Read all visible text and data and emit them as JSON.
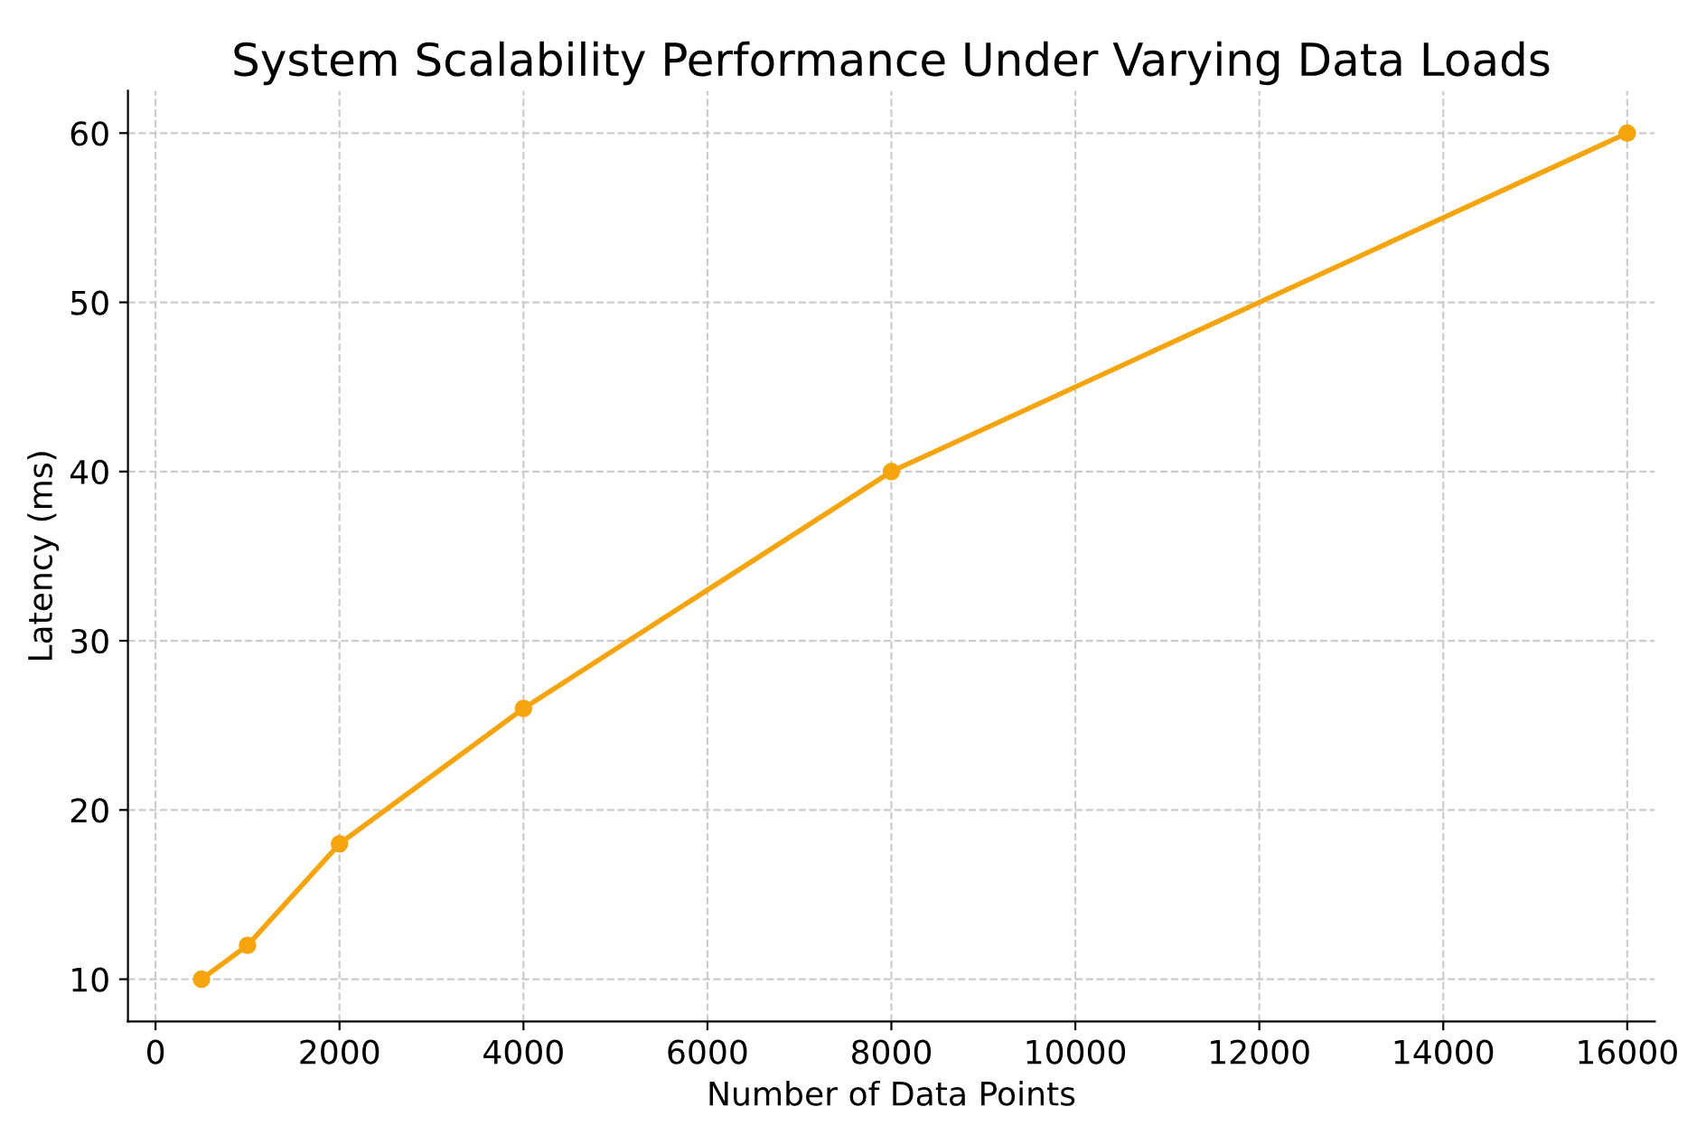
{
  "chart_data": {
    "type": "line",
    "title": "System Scalability Performance Under Varying Data Loads",
    "xlabel": "Number of Data Points",
    "ylabel": "Latency (ms)",
    "x": [
      500,
      1000,
      2000,
      4000,
      8000,
      16000
    ],
    "series": [
      {
        "color": "#f5a40c",
        "values": [
          10,
          12,
          18,
          26,
          40,
          60
        ]
      }
    ],
    "xlim": [
      -300,
      16300
    ],
    "ylim": [
      7.5,
      62.5
    ],
    "xticks": [
      0,
      2000,
      4000,
      6000,
      8000,
      10000,
      12000,
      14000,
      16000
    ],
    "yticks": [
      10,
      20,
      30,
      40,
      50,
      60
    ],
    "grid": true,
    "marker": "circle",
    "line_style": "solid",
    "legend": false
  }
}
